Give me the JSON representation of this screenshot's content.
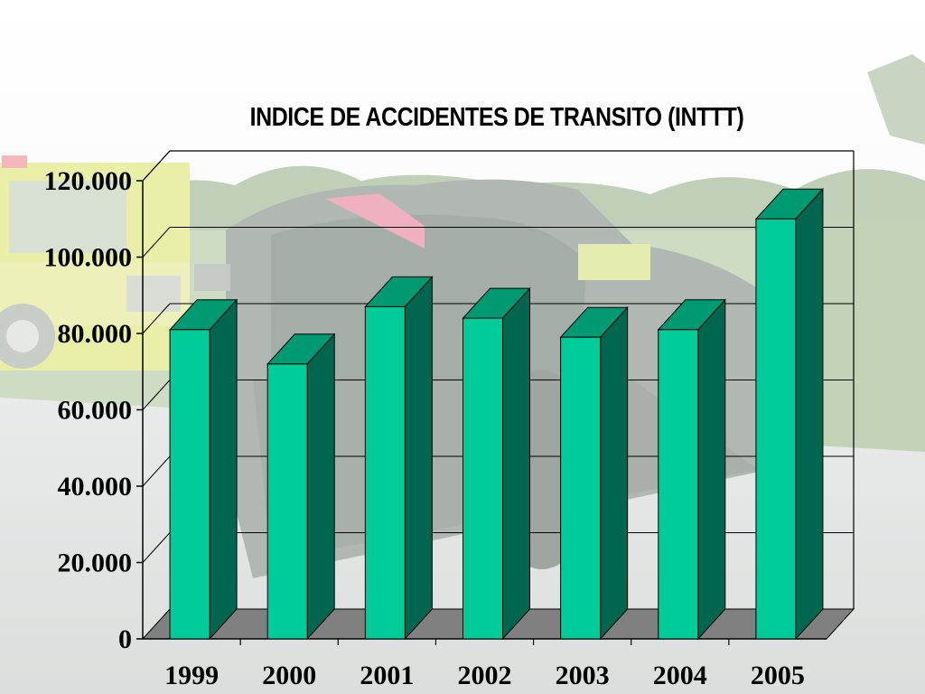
{
  "slide": {
    "background_image": "car-crash-photo",
    "chart_title": "INDICE DE ACCIDENTES DE TRANSITO (INTTT)"
  },
  "chart_data": {
    "type": "bar",
    "style": "3d-column",
    "title": "INDICE DE ACCIDENTES DE TRANSITO (INTTT)",
    "xlabel": "",
    "ylabel": "",
    "categories": [
      "1999",
      "2000",
      "2001",
      "2002",
      "2003",
      "2004",
      "2005"
    ],
    "values": [
      81000,
      72000,
      87000,
      84000,
      79000,
      81000,
      110000
    ],
    "ylim": [
      0,
      120000
    ],
    "yticks": [
      0,
      20000,
      40000,
      60000,
      80000,
      100000,
      120000
    ],
    "ytick_labels": [
      "0",
      "20.000",
      "40.000",
      "60.000",
      "80.000",
      "100.000",
      "120.000"
    ],
    "grid": true,
    "legend": "none",
    "colors": {
      "bar_front": "#00cc99",
      "bar_side": "#006650",
      "bar_top": "#009a72",
      "floor": "#808080",
      "grid": "#000000"
    }
  }
}
